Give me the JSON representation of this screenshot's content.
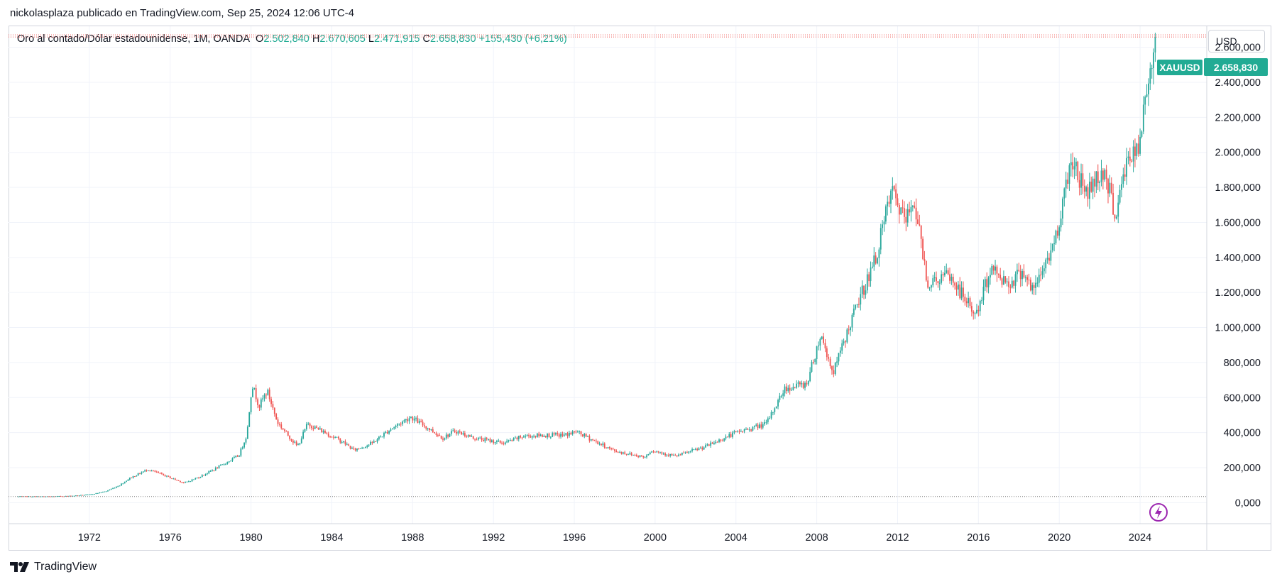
{
  "header": {
    "published": "nickolasplaza publicado en TradingView.com, Sep 25, 2024 12:06 UTC-4"
  },
  "legend": {
    "symbol": "Oro al contado/Dólar estadounidense, 1M, OANDA",
    "o_label": "O",
    "o_value": "2.502,840",
    "h_label": "H",
    "h_value": "2.670,605",
    "l_label": "L",
    "l_value": "2.471,915",
    "c_label": "C",
    "c_value": "2.658,830",
    "change": "+155,430 (+6,21%)"
  },
  "currency_button": "USD",
  "price_tag": {
    "symbol": "XAUUSD",
    "value": "2.658,830"
  },
  "brand": "TradingView",
  "colors": {
    "up": "#26a69a",
    "down": "#ef5350",
    "grid": "#f0f3fa",
    "axis_text": "#131722",
    "tag": "#22ab94"
  },
  "chart_data": {
    "type": "candlestick",
    "interval": "1M",
    "x_range": [
      1968.0,
      2027.3
    ],
    "ylim": [
      -120,
      2720
    ],
    "x_ticks": [
      "1972",
      "1976",
      "1980",
      "1984",
      "1988",
      "1992",
      "1996",
      "2000",
      "2004",
      "2008",
      "2012",
      "2016",
      "2020",
      "2024"
    ],
    "y_ticks": [
      "0,000",
      "200,000",
      "400,000",
      "600,000",
      "800,000",
      "1.000,000",
      "1.200,000",
      "1.400,000",
      "1.600,000",
      "1.800,000",
      "2.000,000",
      "2.200,000",
      "2.400,000",
      "2.600,000"
    ],
    "last_close": 2658.83,
    "reference_low": 35,
    "anchors": [
      [
        1968.5,
        35
      ],
      [
        1970.0,
        35
      ],
      [
        1971.0,
        38
      ],
      [
        1972.0,
        46
      ],
      [
        1972.8,
        64
      ],
      [
        1973.5,
        100
      ],
      [
        1974.0,
        140
      ],
      [
        1974.9,
        190
      ],
      [
        1975.6,
        160
      ],
      [
        1976.7,
        112
      ],
      [
        1977.5,
        150
      ],
      [
        1978.5,
        210
      ],
      [
        1979.4,
        270
      ],
      [
        1979.8,
        390
      ],
      [
        1980.05,
        680
      ],
      [
        1980.4,
        550
      ],
      [
        1980.8,
        640
      ],
      [
        1981.3,
        460
      ],
      [
        1982.3,
        320
      ],
      [
        1982.8,
        450
      ],
      [
        1983.5,
        410
      ],
      [
        1984.5,
        350
      ],
      [
        1985.1,
        300
      ],
      [
        1986.0,
        340
      ],
      [
        1986.9,
        420
      ],
      [
        1987.9,
        490
      ],
      [
        1988.7,
        430
      ],
      [
        1989.5,
        370
      ],
      [
        1990.1,
        410
      ],
      [
        1991.0,
        370
      ],
      [
        1992.5,
        340
      ],
      [
        1993.5,
        380
      ],
      [
        1994.5,
        385
      ],
      [
        1995.5,
        385
      ],
      [
        1996.1,
        405
      ],
      [
        1997.2,
        340
      ],
      [
        1998.0,
        295
      ],
      [
        1999.5,
        260
      ],
      [
        1999.8,
        300
      ],
      [
        2001.0,
        265
      ],
      [
        2002.5,
        320
      ],
      [
        2004.0,
        400
      ],
      [
        2005.5,
        450
      ],
      [
        2006.4,
        650
      ],
      [
        2007.5,
        680
      ],
      [
        2008.2,
        960
      ],
      [
        2008.8,
        740
      ],
      [
        2009.9,
        1100
      ],
      [
        2010.9,
        1390
      ],
      [
        2011.7,
        1780
      ],
      [
        2012.4,
        1600
      ],
      [
        2012.8,
        1740
      ],
      [
        2013.5,
        1250
      ],
      [
        2014.5,
        1300
      ],
      [
        2015.9,
        1070
      ],
      [
        2016.6,
        1340
      ],
      [
        2017.5,
        1250
      ],
      [
        2018.2,
        1330
      ],
      [
        2018.7,
        1200
      ],
      [
        2019.8,
        1500
      ],
      [
        2020.6,
        1970
      ],
      [
        2021.3,
        1770
      ],
      [
        2022.2,
        1900
      ],
      [
        2022.8,
        1640
      ],
      [
        2023.4,
        1980
      ],
      [
        2023.9,
        1990
      ],
      [
        2024.3,
        2330
      ],
      [
        2024.73,
        2658
      ]
    ]
  }
}
